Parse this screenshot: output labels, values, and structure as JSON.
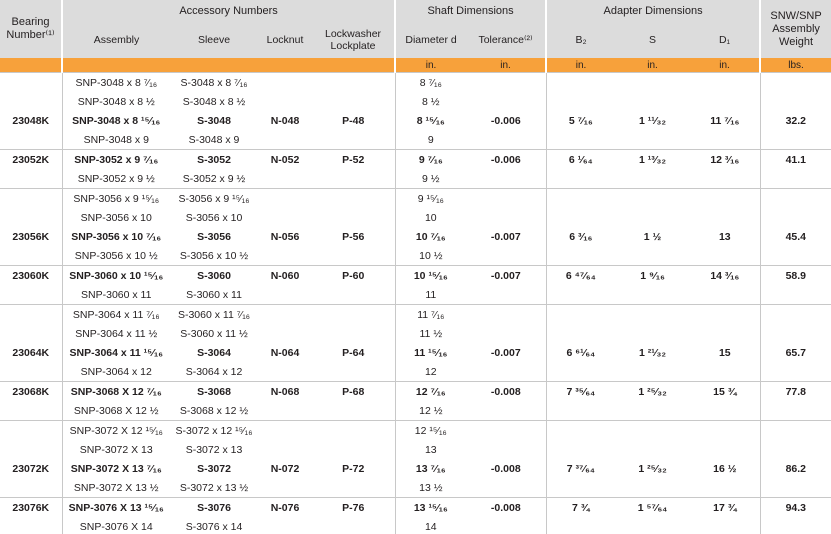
{
  "header": {
    "groups": [
      "Bearing Number⁽¹⁾",
      "Accessory Numbers",
      "Shaft Dimensions",
      "Adapter Dimensions",
      "SNW/SNP Assembly Weight"
    ],
    "columns": [
      "Assembly",
      "Sleeve",
      "Locknut",
      "Lockwasher Lockplate",
      "Diameter d",
      "Tolerance⁽²⁾",
      "B₂",
      "S",
      "D₁"
    ],
    "units": [
      "in.",
      "in.",
      "in.",
      "in.",
      "in.",
      "lbs."
    ]
  },
  "table": {
    "groups": [
      {
        "bearing": "23048K",
        "locknut": "N-048",
        "lockplate": "P-48",
        "tolerance": "-0.006",
        "b2": "5 ⁷⁄₁₆",
        "s": "1 ¹¹⁄₃₂",
        "d1": "11 ⁷⁄₁₆",
        "weight": "32.2",
        "bold": 2,
        "rows": [
          [
            "SNP-3048 x 8 ⁷⁄₁₆",
            "S-3048 x 8 ⁷⁄₁₆",
            "8 ⁷⁄₁₆"
          ],
          [
            "SNP-3048 x 8 ½",
            "S-3048 x 8 ½",
            "8 ½"
          ],
          [
            "SNP-3048 x 8 ¹⁵⁄₁₆",
            "S-3048",
            "8 ¹⁵⁄₁₆"
          ],
          [
            "SNP-3048 x 9",
            "S-3048 x 9",
            "9"
          ]
        ]
      },
      {
        "bearing": "23052K",
        "locknut": "N-052",
        "lockplate": "P-52",
        "tolerance": "-0.006",
        "b2": "6 ¹⁄₆₄",
        "s": "1 ¹³⁄₃₂",
        "d1": "12 ³⁄₁₆",
        "weight": "41.1",
        "bold": 0,
        "rows": [
          [
            "SNP-3052 x 9 ⁷⁄₁₆",
            "S-3052",
            "9 ⁷⁄₁₆"
          ],
          [
            "SNP-3052 x 9 ½",
            "S-3052 x 9 ½",
            "9 ½"
          ]
        ]
      },
      {
        "bearing": "23056K",
        "locknut": "N-056",
        "lockplate": "P-56",
        "tolerance": "-0.007",
        "b2": "6 ³⁄₁₆",
        "s": "1 ½",
        "d1": "13",
        "weight": "45.4",
        "bold": 2,
        "rows": [
          [
            "SNP-3056 x 9 ¹⁵⁄₁₆",
            "S-3056 x 9 ¹⁵⁄₁₆",
            "9 ¹⁵⁄₁₆"
          ],
          [
            "SNP-3056 x 10",
            "S-3056 x 10",
            "10"
          ],
          [
            "SNP-3056 x 10 ⁷⁄₁₆",
            "S-3056",
            "10 ⁷⁄₁₆"
          ],
          [
            "SNP-3056 x 10 ½",
            "S-3056 x 10 ½",
            "10 ½"
          ]
        ]
      },
      {
        "bearing": "23060K",
        "locknut": "N-060",
        "lockplate": "P-60",
        "tolerance": "-0.007",
        "b2": "6 ⁴⁷⁄₆₄",
        "s": "1 ⁹⁄₁₆",
        "d1": "14 ³⁄₁₆",
        "weight": "58.9",
        "bold": 0,
        "rows": [
          [
            "SNP-3060 x 10 ¹⁵⁄₁₆",
            "S-3060",
            "10 ¹⁵⁄₁₆"
          ],
          [
            "SNP-3060 x 11",
            "S-3060 x 11",
            "11"
          ]
        ]
      },
      {
        "bearing": "23064K",
        "locknut": "N-064",
        "lockplate": "P-64",
        "tolerance": "-0.007",
        "b2": "6 ⁶¹⁄₆₄",
        "s": "1 ²¹⁄₃₂",
        "d1": "15",
        "weight": "65.7",
        "bold": 2,
        "rows": [
          [
            "SNP-3064 x 11 ⁷⁄₁₆",
            "S-3060 x 11 ⁷⁄₁₆",
            "11 ⁷⁄₁₆"
          ],
          [
            "SNP-3064 x 11 ½",
            "S-3060 x 11 ½",
            "11 ½"
          ],
          [
            "SNP-3064 x 11 ¹⁵⁄₁₆",
            "S-3064",
            "11 ¹⁵⁄₁₆"
          ],
          [
            "SNP-3064 x 12",
            "S-3064 x 12",
            "12"
          ]
        ]
      },
      {
        "bearing": "23068K",
        "locknut": "N-068",
        "lockplate": "P-68",
        "tolerance": "-0.008",
        "b2": "7 ³⁵⁄₆₄",
        "s": "1 ²⁵⁄₃₂",
        "d1": "15 ¾",
        "weight": "77.8",
        "bold": 0,
        "rows": [
          [
            "SNP-3068 X 12 ⁷⁄₁₆",
            "S-3068",
            "12 ⁷⁄₁₆"
          ],
          [
            "SNP-3068 X 12 ½",
            "S-3068 x 12 ½",
            "12 ½"
          ]
        ]
      },
      {
        "bearing": "23072K",
        "locknut": "N-072",
        "lockplate": "P-72",
        "tolerance": "-0.008",
        "b2": "7 ³⁷⁄₆₄",
        "s": "1 ²⁵⁄₃₂",
        "d1": "16 ½",
        "weight": "86.2",
        "bold": 2,
        "rows": [
          [
            "SNP-3072 X 12 ¹⁵⁄₁₆",
            "S-3072 x 12 ¹⁵⁄₁₆",
            "12 ¹⁵⁄₁₆"
          ],
          [
            "SNP-3072 X 13",
            "S-3072 x 13",
            "13"
          ],
          [
            "SNP-3072 X 13 ⁷⁄₁₆",
            "S-3072",
            "13 ⁷⁄₁₆"
          ],
          [
            "SNP-3072 X 13 ½",
            "S-3072 x 13 ½",
            "13 ½"
          ]
        ]
      },
      {
        "bearing": "23076K",
        "locknut": "N-076",
        "lockplate": "P-76",
        "tolerance": "-0.008",
        "b2": "7 ¾",
        "s": "1 ⁵⁷⁄₆₄",
        "d1": "17 ¾",
        "weight": "94.3",
        "bold": 0,
        "rows": [
          [
            "SNP-3076 X 13 ¹⁵⁄₁₆",
            "S-3076",
            "13 ¹⁵⁄₁₆"
          ],
          [
            "SNP-3076 X 14",
            "S-3076 x 14",
            "14"
          ]
        ]
      }
    ]
  }
}
